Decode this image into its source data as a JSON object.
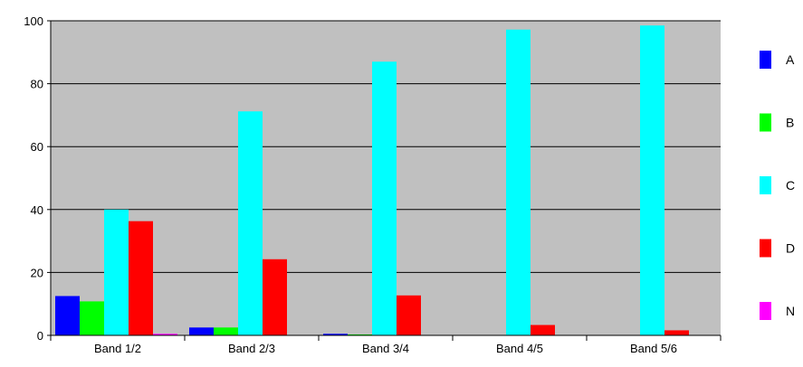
{
  "chart_data": {
    "type": "bar",
    "title": "",
    "xlabel": "",
    "ylabel": "",
    "ylim": [
      0,
      100
    ],
    "yticks": [
      0,
      20,
      40,
      60,
      80,
      100
    ],
    "grid": true,
    "legend_position": "right",
    "plot_background": "#c0c0c0",
    "categories": [
      "Band 1/2",
      "Band 2/3",
      "Band 3/4",
      "Band 4/5",
      "Band 5/6"
    ],
    "series": [
      {
        "name": "A",
        "color": "#0000ff",
        "values": [
          12.5,
          2.5,
          0.5,
          0,
          0
        ]
      },
      {
        "name": "B",
        "color": "#00ff00",
        "values": [
          10.8,
          2.5,
          0.3,
          0,
          0
        ]
      },
      {
        "name": "C",
        "color": "#00ffff",
        "values": [
          40,
          71.2,
          87,
          97.2,
          98.5
        ]
      },
      {
        "name": "D",
        "color": "#ff0000",
        "values": [
          36.3,
          24.2,
          12.7,
          3.3,
          1.6
        ]
      },
      {
        "name": "N",
        "color": "#ff00ff",
        "values": [
          0.5,
          0,
          0,
          0,
          0
        ]
      }
    ]
  }
}
